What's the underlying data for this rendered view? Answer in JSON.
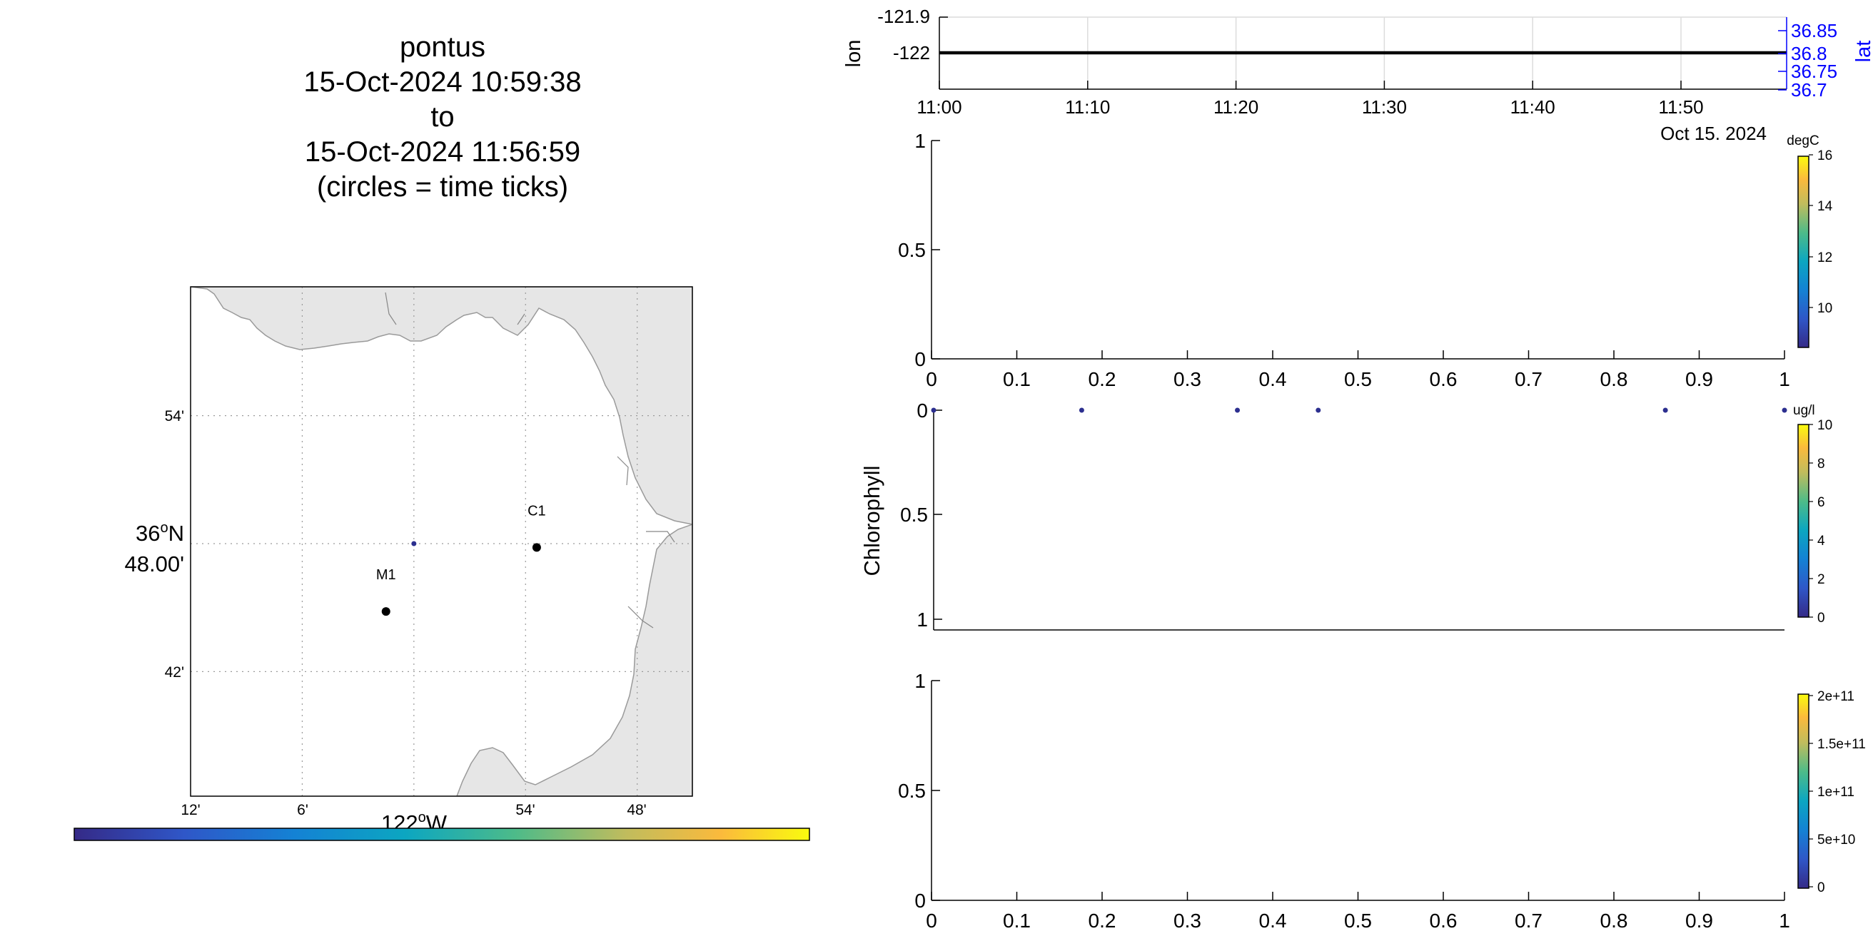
{
  "title": {
    "line1": "pontus",
    "line2": "15-Oct-2024 10:59:38",
    "line3": "to",
    "line4": "15-Oct-2024 11:56:59",
    "line5": "(circles = time ticks)"
  },
  "colors": {
    "track_blue": "#0000ff",
    "land": "#e6e6e6",
    "coast": "#9a9a9a",
    "point": "#2c2f8f"
  },
  "map": {
    "lat_tick_labels": [
      "54'",
      "48.00'",
      "42'"
    ],
    "lat_degree_label": "36",
    "lat_degree_suffix": "N",
    "lon_tick_labels": [
      "12'",
      "6'",
      "54'",
      "48'"
    ],
    "lon_degree_label": "122",
    "lon_degree_suffix": "W",
    "stations": [
      {
        "name": "C1",
        "lon": -121.89,
        "lat": 36.797
      },
      {
        "name": "M1",
        "lon": -122.025,
        "lat": 36.747
      }
    ],
    "track_point": {
      "lon": -122.0,
      "lat": 36.8
    }
  },
  "panel_track": {
    "ylabel_left": "lon",
    "ylabel_right": "lat",
    "left_ticks": [
      "-121.9",
      "-122"
    ],
    "right_ticks": [
      "36.85",
      "36.8",
      "36.75",
      "36.7"
    ],
    "time_ticks": [
      "11:00",
      "11:10",
      "11:20",
      "11:30",
      "11:40",
      "11:50"
    ],
    "date_label": "Oct 15. 2024"
  },
  "panel_temp": {
    "yticks": [
      "1",
      "0.5",
      "0"
    ],
    "xticks": [
      "0",
      "0.1",
      "0.2",
      "0.3",
      "0.4",
      "0.5",
      "0.6",
      "0.7",
      "0.8",
      "0.9",
      "1"
    ],
    "colorbar_units": "degC",
    "colorbar_ticks": [
      "16",
      "14",
      "12",
      "10"
    ]
  },
  "panel_chl": {
    "ylabel": "Chlorophyll",
    "yticks": [
      "0",
      "0.5",
      "1"
    ],
    "colorbar_units": "ug/l",
    "colorbar_ticks": [
      "10",
      "8",
      "6",
      "4",
      "2",
      "0"
    ]
  },
  "panel_bottom": {
    "yticks": [
      "1",
      "0.5",
      "0"
    ],
    "xticks": [
      "0",
      "0.1",
      "0.2",
      "0.3",
      "0.4",
      "0.5",
      "0.6",
      "0.7",
      "0.8",
      "0.9",
      "1"
    ],
    "colorbar_ticks": [
      "2e+11",
      "1.5e+11",
      "1e+11",
      "5e+10",
      "0"
    ]
  },
  "chart_data": [
    {
      "type": "line",
      "title": "",
      "xlabel": "",
      "ylabel": "lon",
      "x": [
        "10:59:38",
        "11:56:59"
      ],
      "series": [
        {
          "values": [
            -122,
            -122
          ]
        }
      ],
      "ylim": [
        -122.05,
        -121.9
      ],
      "y2label": "lat",
      "y2lim": [
        36.69,
        36.87
      ],
      "grid": true
    },
    {
      "type": "scatter",
      "xlim": [
        0,
        1
      ],
      "ylim": [
        0,
        1
      ],
      "colorbar": {
        "label": "degC",
        "range": [
          8.5,
          16
        ]
      },
      "series": []
    },
    {
      "type": "scatter",
      "ylabel": "Chlorophyll",
      "xlim": [
        0,
        1
      ],
      "ylim": [
        0,
        1
      ],
      "y_reversed": true,
      "x": [
        0,
        0.174,
        0.357,
        0.452,
        0.86,
        1
      ],
      "series": [
        {
          "values": [
            0,
            0,
            0,
            0,
            0,
            0
          ]
        }
      ],
      "colorbar": {
        "label": "ug/l",
        "range": [
          0,
          10
        ]
      }
    },
    {
      "type": "scatter",
      "xlim": [
        0,
        1
      ],
      "ylim": [
        0,
        1
      ],
      "colorbar": {
        "range": [
          0,
          200000000000.0
        ]
      },
      "series": []
    }
  ]
}
